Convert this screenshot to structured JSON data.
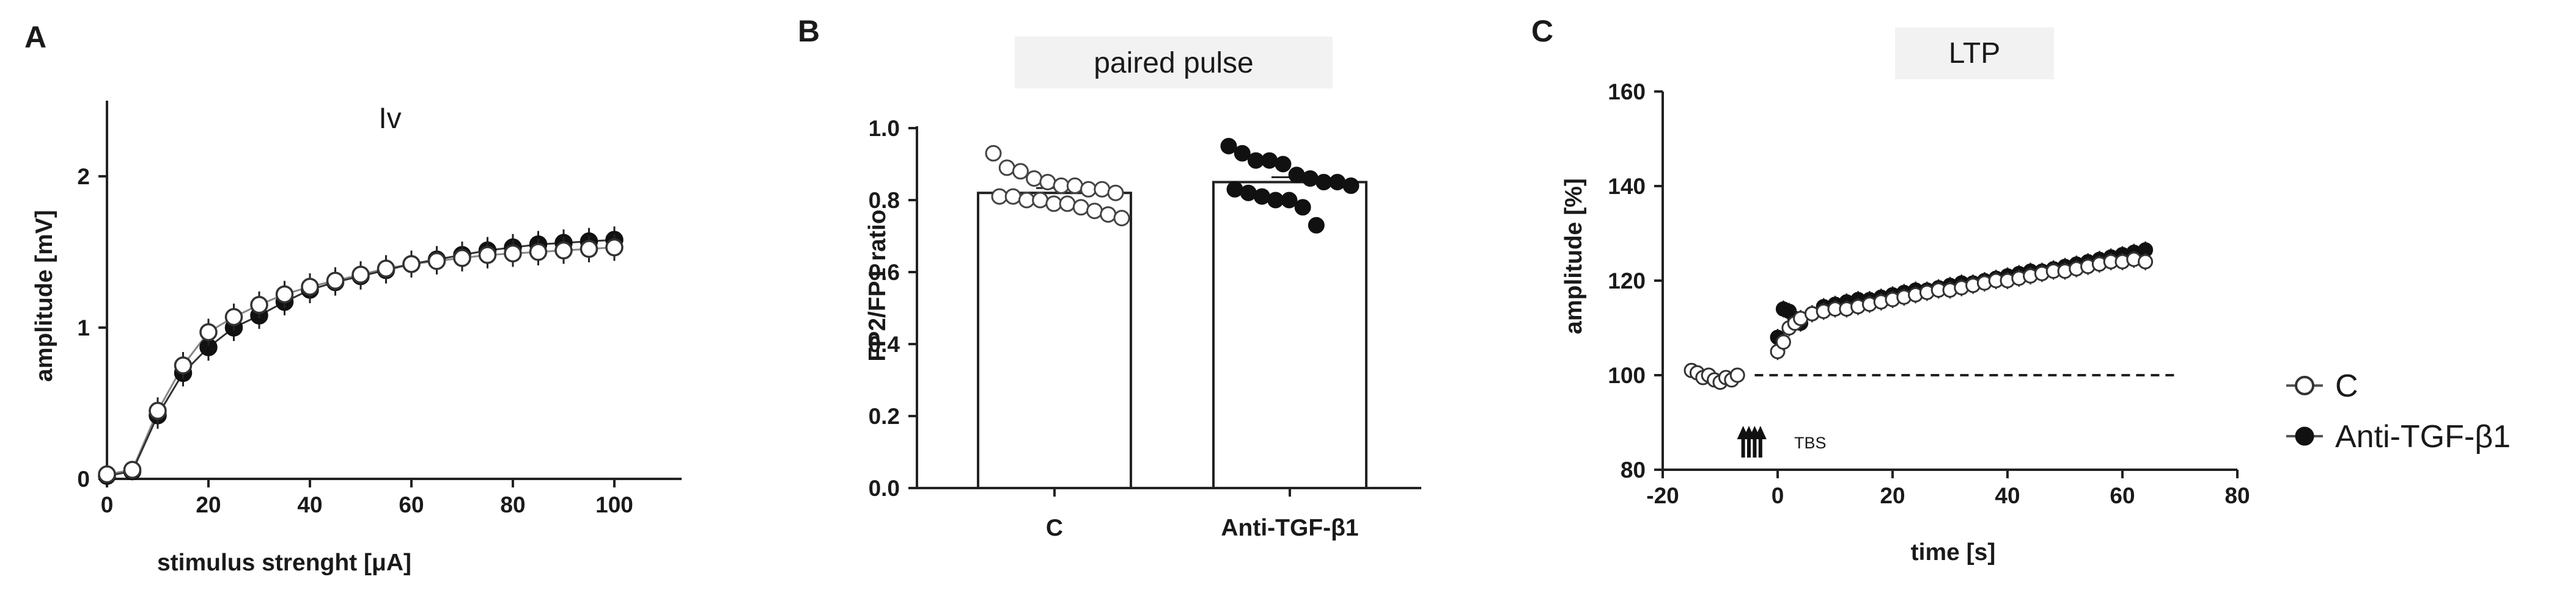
{
  "panels": {
    "a": {
      "letter": "A"
    },
    "b": {
      "letter": "B"
    },
    "c": {
      "letter": "C"
    }
  },
  "legend": {
    "control": "C",
    "treated": "Anti-TGF-β1"
  },
  "chart_data": [
    {
      "type": "line",
      "title": "Iv",
      "xlabel": "stimulus strenght [μA]",
      "ylabel": "amplitude [mV]",
      "xlim": [
        0,
        110
      ],
      "ylim": [
        0,
        2.5
      ],
      "xticks": [
        "0",
        "20",
        "40",
        "60",
        "80",
        "100"
      ],
      "yticks": [
        "0",
        "1",
        "2"
      ],
      "x": [
        0,
        5,
        10,
        15,
        20,
        25,
        30,
        35,
        40,
        45,
        50,
        55,
        60,
        65,
        70,
        75,
        80,
        85,
        90,
        95,
        100
      ],
      "series": [
        {
          "name": "C",
          "marker": "open-circle",
          "values": [
            0.03,
            0.06,
            0.45,
            0.75,
            0.97,
            1.07,
            1.15,
            1.22,
            1.27,
            1.31,
            1.35,
            1.39,
            1.42,
            1.44,
            1.46,
            1.48,
            1.49,
            1.5,
            1.51,
            1.52,
            1.53
          ]
        },
        {
          "name": "Anti-TGF-β1",
          "marker": "filled-circle",
          "values": [
            0.02,
            0.05,
            0.42,
            0.7,
            0.87,
            1.0,
            1.08,
            1.17,
            1.25,
            1.3,
            1.34,
            1.38,
            1.42,
            1.45,
            1.48,
            1.51,
            1.53,
            1.55,
            1.56,
            1.57,
            1.58
          ]
        }
      ]
    },
    {
      "type": "bar",
      "title": "paired pulse",
      "ylabel": "FP2/FP1 ratio",
      "ylim": [
        0,
        1.0
      ],
      "yticks": [
        "0.0",
        "0.2",
        "0.4",
        "0.6",
        "0.8",
        "1.0"
      ],
      "categories": [
        "C",
        "Anti-TGF-β1"
      ],
      "values": [
        0.82,
        0.85
      ],
      "points": [
        [
          0.93,
          0.89,
          0.88,
          0.86,
          0.85,
          0.84,
          0.84,
          0.83,
          0.83,
          0.82,
          0.81,
          0.81,
          0.8,
          0.8,
          0.79,
          0.79,
          0.78,
          0.77,
          0.76,
          0.75
        ],
        [
          0.95,
          0.93,
          0.91,
          0.91,
          0.9,
          0.87,
          0.86,
          0.85,
          0.85,
          0.84,
          0.83,
          0.82,
          0.81,
          0.8,
          0.8,
          0.78,
          0.73
        ]
      ]
    },
    {
      "type": "scatter",
      "title": "LTP",
      "xlabel": "time [s]",
      "ylabel": "amplitude [%]",
      "xlim": [
        -20,
        80
      ],
      "ylim": [
        80,
        160
      ],
      "xticks": [
        "-20",
        "0",
        "20",
        "40",
        "60",
        "80"
      ],
      "yticks": [
        "80",
        "100",
        "120",
        "140",
        "160"
      ],
      "baseline": 100,
      "annotation": "TBS",
      "series": [
        {
          "name": "C",
          "marker": "open-circle",
          "x": [
            -15,
            -14,
            -13,
            -12,
            -11,
            -10,
            -9,
            -8,
            -7,
            0,
            1,
            2,
            3,
            4,
            6,
            8,
            10,
            12,
            14,
            16,
            18,
            20,
            22,
            24,
            26,
            28,
            30,
            32,
            34,
            36,
            38,
            40,
            42,
            44,
            46,
            48,
            50,
            52,
            54,
            56,
            58,
            60,
            62,
            64
          ],
          "values": [
            101,
            100.5,
            99.5,
            100,
            99,
            98.5,
            99.5,
            99,
            100,
            105,
            107,
            110,
            111,
            112,
            113,
            113.5,
            114,
            114,
            114.5,
            115,
            115.5,
            116,
            116.5,
            117,
            117.5,
            118,
            118,
            118.5,
            119,
            119.5,
            120,
            120,
            120.5,
            121,
            121.5,
            122,
            122,
            122.5,
            123,
            123.5,
            124,
            124,
            124.5,
            124
          ]
        },
        {
          "name": "Anti-TGF-β1",
          "marker": "filled-circle",
          "x": [
            0,
            1,
            2,
            3,
            4,
            6,
            8,
            10,
            12,
            14,
            16,
            18,
            20,
            22,
            24,
            26,
            28,
            30,
            32,
            34,
            36,
            38,
            40,
            42,
            44,
            46,
            48,
            50,
            52,
            54,
            56,
            58,
            60,
            62,
            64
          ],
          "values": [
            108,
            114,
            113.5,
            112,
            111,
            113,
            114.5,
            115,
            115.5,
            116,
            116,
            116.5,
            117,
            117.5,
            118,
            118,
            118.5,
            119,
            119.5,
            119.5,
            120,
            120.5,
            121,
            121.5,
            122,
            122,
            122.5,
            123,
            123.5,
            124,
            124.5,
            125,
            125.5,
            126,
            126.5
          ]
        }
      ]
    }
  ]
}
